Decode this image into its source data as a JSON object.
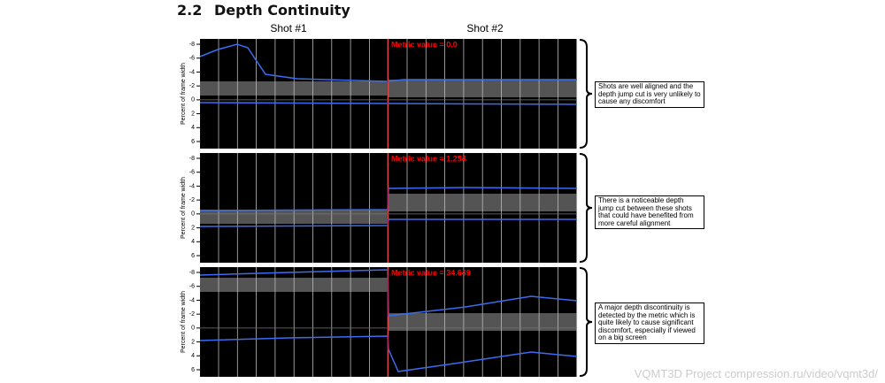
{
  "header": {
    "number": "2.2",
    "title": "Depth Continuity"
  },
  "columns": [
    "Shot #1",
    "Shot #2"
  ],
  "panels": [
    {
      "metric": "Metric value = 0.0",
      "y_label": "Percent of frame width",
      "yticks": [
        -8,
        -6,
        -4,
        -2,
        0,
        2,
        4,
        6
      ],
      "annotation": "Shots are well aligned and the depth jump cut is very unlikely to cause any discomfort"
    },
    {
      "metric": "Metric value = 1.254",
      "y_label": "Percent of frame width",
      "yticks": [
        -8,
        -6,
        -4,
        -2,
        0,
        2,
        4,
        6
      ],
      "annotation": "There is a noticeable depth jump cut between these shots that could have benefited from more careful alignment"
    },
    {
      "metric": "Metric value = 34.649",
      "y_label": "Percent of frame width",
      "yticks": [
        -8,
        -6,
        -4,
        -2,
        0,
        2,
        4,
        6
      ],
      "annotation": "A major depth discontinuity is detected by the metric which is quite likely to cause significant discomfort, especially if viewed on a big screen"
    }
  ],
  "watermark": "VQMT3D Project compression.ru/video/vqmt3d/"
}
